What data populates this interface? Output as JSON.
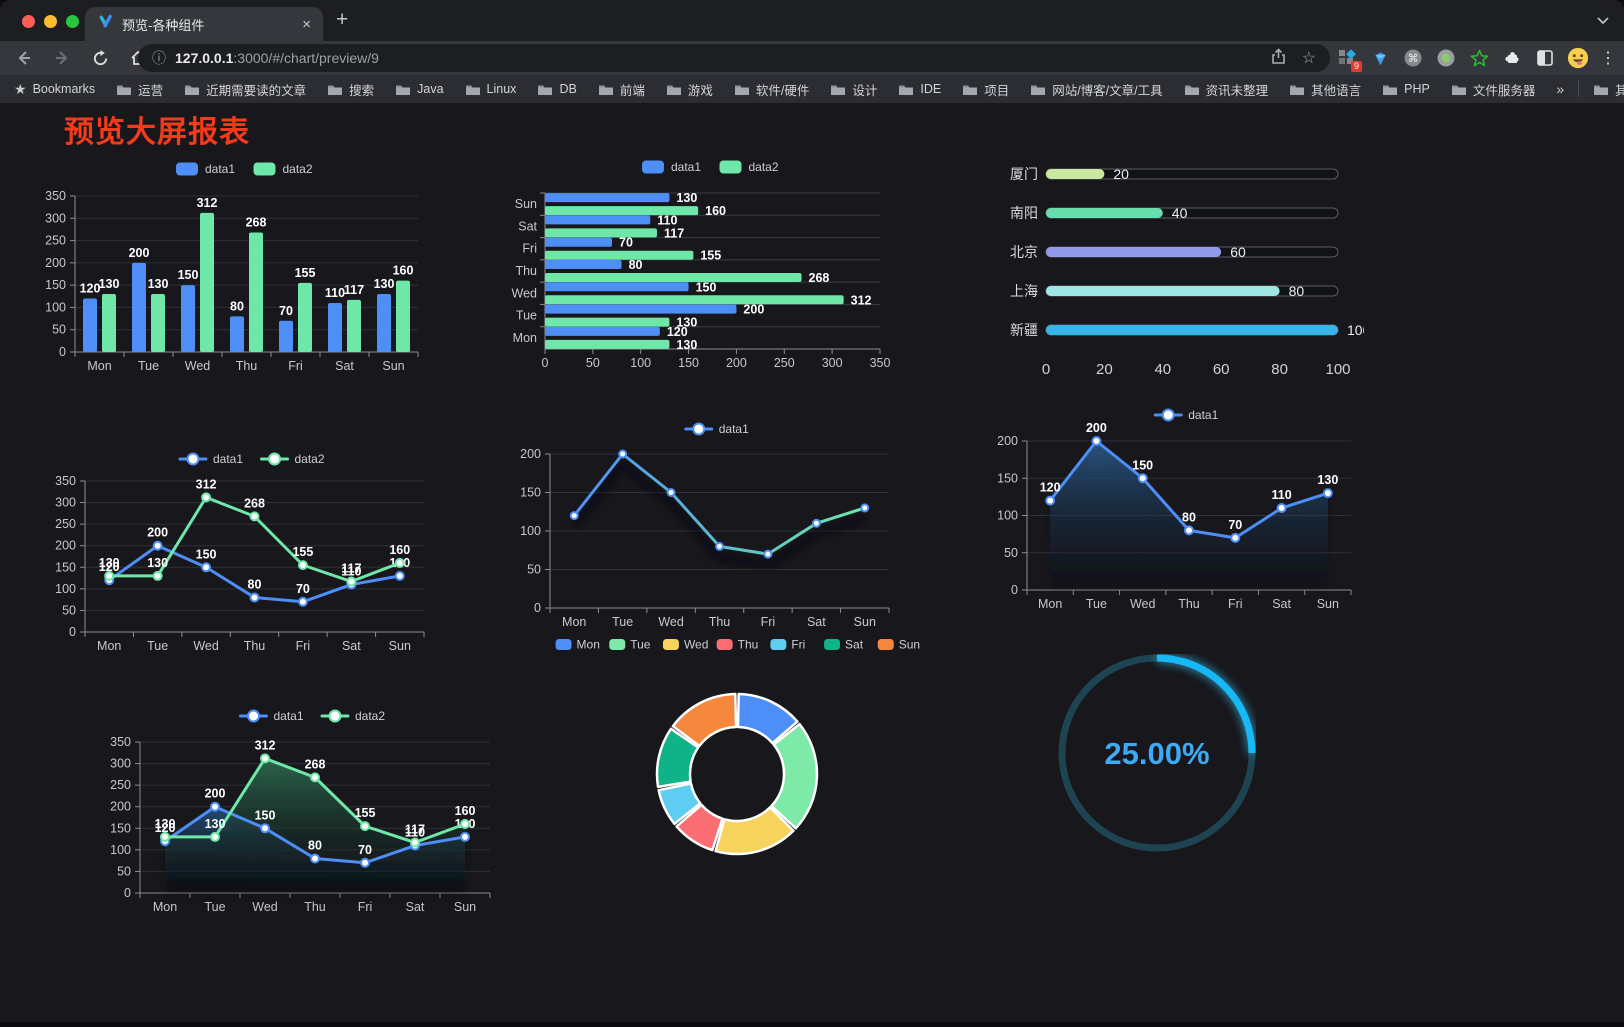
{
  "browser": {
    "tab": {
      "title": "预览-各种组件"
    },
    "glyphs": {
      "tab_close": "×",
      "new_tab": "+",
      "menu": "⋮",
      "star_outline": "☆",
      "bookmarks_star": "★",
      "overflow": "»",
      "info": "ⓘ"
    },
    "url": {
      "host": "127.0.0.1",
      "rest": ":3000/#/chart/preview/9"
    },
    "extensions_badge": "9",
    "cmd_glyph": "⌘",
    "bookmarks_label": "Bookmarks",
    "bookmarks": [
      "运营",
      "近期需要读的文章",
      "搜索",
      "Java",
      "Linux",
      "DB",
      "前端",
      "游戏",
      "软件/硬件",
      "设计",
      "IDE",
      "项目",
      "网站/博客/文章/工具",
      "资讯未整理",
      "其他语言",
      "PHP",
      "文件服务器"
    ],
    "other_bookmarks": "其他书签"
  },
  "page": {
    "title": "预览大屏报表",
    "title_color": "#f43b1b"
  },
  "colors": {
    "data1": "#4e8ef7",
    "data2": "#6ee7a8",
    "gauge": "#18b9f6"
  },
  "chart_data": [
    {
      "type": "bar",
      "categories": [
        "Mon",
        "Tue",
        "Wed",
        "Thu",
        "Fri",
        "Sat",
        "Sun"
      ],
      "series": [
        {
          "name": "data1",
          "values": [
            120,
            200,
            150,
            80,
            70,
            110,
            130
          ],
          "color": "#4e8ef7"
        },
        {
          "name": "data2",
          "values": [
            130,
            130,
            312,
            268,
            155,
            117,
            160
          ],
          "color": "#6ee7a8"
        }
      ],
      "ylim": [
        0,
        350
      ],
      "yticks": [
        0,
        50,
        100,
        150,
        200,
        250,
        300,
        350
      ],
      "labels": true,
      "legend_position": "top",
      "grid": true
    },
    {
      "type": "bar-horizontal",
      "categories": [
        "Mon",
        "Tue",
        "Wed",
        "Thu",
        "Fri",
        "Sat",
        "Sun"
      ],
      "series": [
        {
          "name": "data1",
          "values": [
            120,
            200,
            150,
            80,
            70,
            110,
            130
          ],
          "color": "#4e8ef7"
        },
        {
          "name": "data2",
          "values": [
            130,
            130,
            312,
            268,
            155,
            117,
            160
          ],
          "color": "#6ee7a8"
        }
      ],
      "xlim": [
        0,
        350
      ],
      "xticks": [
        0,
        50,
        100,
        150,
        200,
        250,
        300,
        350
      ],
      "labels": true,
      "legend_position": "top",
      "grid": true
    },
    {
      "type": "progress",
      "items": [
        {
          "label": "厦门",
          "value": 20,
          "color": "#c9e8a2"
        },
        {
          "label": "南阳",
          "value": 40,
          "color": "#66dfad"
        },
        {
          "label": "北京",
          "value": 60,
          "color": "#9299e9"
        },
        {
          "label": "上海",
          "value": 80,
          "color": "#a0e6e4"
        },
        {
          "label": "新疆",
          "value": 100,
          "color": "#3ab3e9"
        }
      ],
      "xlim": [
        0,
        100
      ],
      "xticks": [
        0,
        20,
        40,
        60,
        80,
        100
      ]
    },
    {
      "type": "line",
      "categories": [
        "Mon",
        "Tue",
        "Wed",
        "Thu",
        "Fri",
        "Sat",
        "Sun"
      ],
      "series": [
        {
          "name": "data1",
          "values": [
            120,
            200,
            150,
            80,
            70,
            110,
            130
          ],
          "color": "#4e8ef7"
        },
        {
          "name": "data2",
          "values": [
            130,
            130,
            312,
            268,
            155,
            117,
            160
          ],
          "color": "#6ee7a8"
        }
      ],
      "ylim": [
        0,
        350
      ],
      "yticks": [
        0,
        50,
        100,
        150,
        200,
        250,
        300,
        350
      ],
      "labels": true,
      "legend_position": "top",
      "grid": true
    },
    {
      "type": "line",
      "categories": [
        "Mon",
        "Tue",
        "Wed",
        "Thu",
        "Fri",
        "Sat",
        "Sun"
      ],
      "series": [
        {
          "name": "data1",
          "values": [
            120,
            200,
            150,
            80,
            70,
            110,
            130
          ],
          "color": "#4e8ef7",
          "gradient": [
            "#4e8ef7",
            "#6ee7a8"
          ]
        }
      ],
      "ylim": [
        0,
        200
      ],
      "yticks": [
        0,
        50,
        100,
        150,
        200
      ],
      "labels": false,
      "marker_r": 3.5,
      "shadow": true,
      "legend_position": "top",
      "grid": true
    },
    {
      "type": "area",
      "categories": [
        "Mon",
        "Tue",
        "Wed",
        "Thu",
        "Fri",
        "Sat",
        "Sun"
      ],
      "series": [
        {
          "name": "data1",
          "values": [
            120,
            200,
            150,
            80,
            70,
            110,
            130
          ],
          "color": "#4e8ef7",
          "area": [
            "#2b5a8c",
            "#10151c"
          ]
        }
      ],
      "ylim": [
        0,
        200
      ],
      "yticks": [
        0,
        50,
        100,
        150,
        200
      ],
      "labels": true,
      "legend_position": "top",
      "grid": true
    },
    {
      "type": "area",
      "categories": [
        "Mon",
        "Tue",
        "Wed",
        "Thu",
        "Fri",
        "Sat",
        "Sun"
      ],
      "series": [
        {
          "name": "data1",
          "values": [
            120,
            200,
            150,
            80,
            70,
            110,
            130
          ],
          "color": "#4e8ef7",
          "area": [
            "#27517d",
            "#0f141a"
          ]
        },
        {
          "name": "data2",
          "values": [
            130,
            130,
            312,
            268,
            155,
            117,
            160
          ],
          "color": "#6ee7a8",
          "area": [
            "#2e6e52",
            "#10161a"
          ]
        }
      ],
      "ylim": [
        0,
        350
      ],
      "yticks": [
        0,
        50,
        100,
        150,
        200,
        250,
        300,
        350
      ],
      "labels": true,
      "legend_position": "top",
      "grid": true
    },
    {
      "type": "pie",
      "categories": [
        "Mon",
        "Tue",
        "Wed",
        "Thu",
        "Fri",
        "Sat",
        "Sun"
      ],
      "values": [
        120,
        200,
        150,
        80,
        70,
        110,
        130
      ],
      "colors": [
        "#4e8ef7",
        "#7eeaa7",
        "#f6d35c",
        "#fa6d72",
        "#5fccf2",
        "#10b287",
        "#f5883d"
      ],
      "donut": true,
      "legend_position": "top"
    },
    {
      "type": "gauge",
      "value": 25,
      "max": 100,
      "value_label": "25.00%",
      "color": "#18b9f6"
    }
  ]
}
